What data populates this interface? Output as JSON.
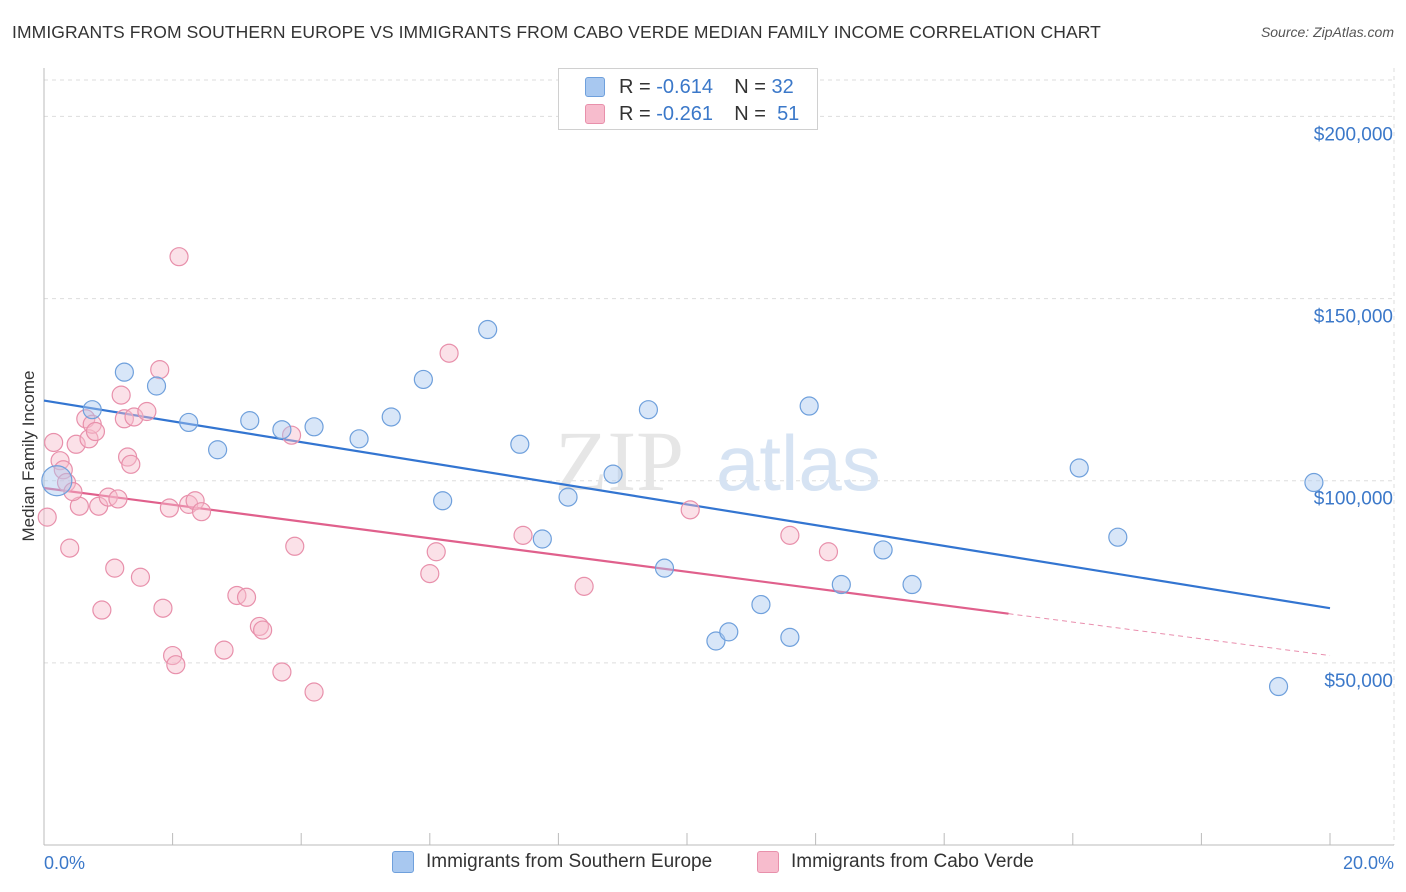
{
  "title": "IMMIGRANTS FROM SOUTHERN EUROPE VS IMMIGRANTS FROM CABO VERDE MEDIAN FAMILY INCOME CORRELATION CHART",
  "source": "Source: ZipAtlas.com",
  "watermark": {
    "zip": "ZIP",
    "atlas": "atlas"
  },
  "legend": {
    "r_label": "R =",
    "n_label": "N =",
    "rows": [
      {
        "r": "-0.614",
        "n": "32",
        "color": "#a8c8f0",
        "stroke": "#6fa0dc"
      },
      {
        "r": "-0.261",
        "n": "51",
        "color": "#f7bccd",
        "stroke": "#e890ab"
      }
    ]
  },
  "chart_data": {
    "type": "scatter",
    "title": "IMMIGRANTS FROM SOUTHERN EUROPE VS IMMIGRANTS FROM CABO VERDE MEDIAN FAMILY INCOME CORRELATION CHART",
    "xlabel": "",
    "ylabel": "Median Family Income",
    "xlim": [
      0,
      20
    ],
    "ylim": [
      0,
      210000
    ],
    "x_tick_labels": [
      "0.0%",
      "20.0%"
    ],
    "y_ticks": [
      50000,
      100000,
      150000,
      200000
    ],
    "y_tick_labels": [
      "$50,000",
      "$100,000",
      "$150,000",
      "$200,000"
    ],
    "grid": true,
    "legend_position": "top-center",
    "series": [
      {
        "name": "Immigrants from Southern Europe",
        "color": "#a8c8f0",
        "stroke": "#6fa0dc",
        "line_color": "#3375d1",
        "trend": {
          "x0": 0.0,
          "y0": 122000,
          "x1": 20.0,
          "y1": 65000,
          "dash_from": null
        },
        "points": [
          [
            0.2,
            100000,
            15
          ],
          [
            0.75,
            119500,
            9
          ],
          [
            1.25,
            129800,
            9
          ],
          [
            1.75,
            126000,
            9
          ],
          [
            2.25,
            116000,
            9
          ],
          [
            2.7,
            108500,
            9
          ],
          [
            3.2,
            116500,
            9
          ],
          [
            3.7,
            114000,
            9
          ],
          [
            4.2,
            114800,
            9
          ],
          [
            4.9,
            111500,
            9
          ],
          [
            5.4,
            117500,
            9
          ],
          [
            5.9,
            127800,
            9
          ],
          [
            6.2,
            94500,
            9
          ],
          [
            6.9,
            141500,
            9
          ],
          [
            7.4,
            110000,
            9
          ],
          [
            7.75,
            84000,
            9
          ],
          [
            8.15,
            95500,
            9
          ],
          [
            8.85,
            101800,
            9
          ],
          [
            9.4,
            119500,
            9
          ],
          [
            9.65,
            76000,
            9
          ],
          [
            10.45,
            56000,
            9
          ],
          [
            10.65,
            58500,
            9
          ],
          [
            11.15,
            66000,
            9
          ],
          [
            11.6,
            57000,
            9
          ],
          [
            11.9,
            120500,
            9
          ],
          [
            12.4,
            71500,
            9
          ],
          [
            13.05,
            81000,
            9
          ],
          [
            13.5,
            71500,
            9
          ],
          [
            16.1,
            103500,
            9
          ],
          [
            16.7,
            84500,
            9
          ],
          [
            19.75,
            99500,
            9
          ],
          [
            19.2,
            43500,
            9
          ]
        ]
      },
      {
        "name": "Immigrants from Cabo Verde",
        "color": "#f7bccd",
        "stroke": "#e890ab",
        "line_color": "#e0608c",
        "trend": {
          "x0": 0.0,
          "y0": 98000,
          "x1": 20.0,
          "y1": 52000,
          "dash_from": 15.0
        },
        "points": [
          [
            0.05,
            90000,
            9
          ],
          [
            0.15,
            110500,
            9
          ],
          [
            0.25,
            105500,
            9
          ],
          [
            0.3,
            103000,
            9
          ],
          [
            0.35,
            99500,
            9
          ],
          [
            0.4,
            81500,
            9
          ],
          [
            0.5,
            110000,
            9
          ],
          [
            0.55,
            93000,
            9
          ],
          [
            0.65,
            117000,
            9
          ],
          [
            0.7,
            111500,
            9
          ],
          [
            0.75,
            115500,
            9
          ],
          [
            0.8,
            113500,
            9
          ],
          [
            0.85,
            93000,
            9
          ],
          [
            0.9,
            64500,
            9
          ],
          [
            1.0,
            95500,
            9
          ],
          [
            1.1,
            76000,
            9
          ],
          [
            1.2,
            123500,
            9
          ],
          [
            1.25,
            117000,
            9
          ],
          [
            1.3,
            106500,
            9
          ],
          [
            1.35,
            104500,
            9
          ],
          [
            1.4,
            117500,
            9
          ],
          [
            1.5,
            73500,
            9
          ],
          [
            1.6,
            119000,
            9
          ],
          [
            1.8,
            130500,
            9
          ],
          [
            1.85,
            65000,
            9
          ],
          [
            1.95,
            92500,
            9
          ],
          [
            2.0,
            52000,
            9
          ],
          [
            2.05,
            49500,
            9
          ],
          [
            2.1,
            161500,
            9
          ],
          [
            2.25,
            93500,
            9
          ],
          [
            2.35,
            94500,
            9
          ],
          [
            2.45,
            91500,
            9
          ],
          [
            2.8,
            53500,
            9
          ],
          [
            3.0,
            68500,
            9
          ],
          [
            3.15,
            68000,
            9
          ],
          [
            3.35,
            60000,
            9
          ],
          [
            3.4,
            59000,
            9
          ],
          [
            3.7,
            47500,
            9
          ],
          [
            3.85,
            112500,
            9
          ],
          [
            3.9,
            82000,
            9
          ],
          [
            4.2,
            42000,
            9
          ],
          [
            6.0,
            74500,
            9
          ],
          [
            6.1,
            80500,
            9
          ],
          [
            6.3,
            135000,
            9
          ],
          [
            7.45,
            85000,
            9
          ],
          [
            8.4,
            71000,
            9
          ],
          [
            10.05,
            92000,
            9
          ],
          [
            11.6,
            85000,
            9
          ],
          [
            12.2,
            80500,
            9
          ],
          [
            0.45,
            97000,
            9
          ],
          [
            1.15,
            95000,
            9
          ]
        ]
      }
    ]
  }
}
